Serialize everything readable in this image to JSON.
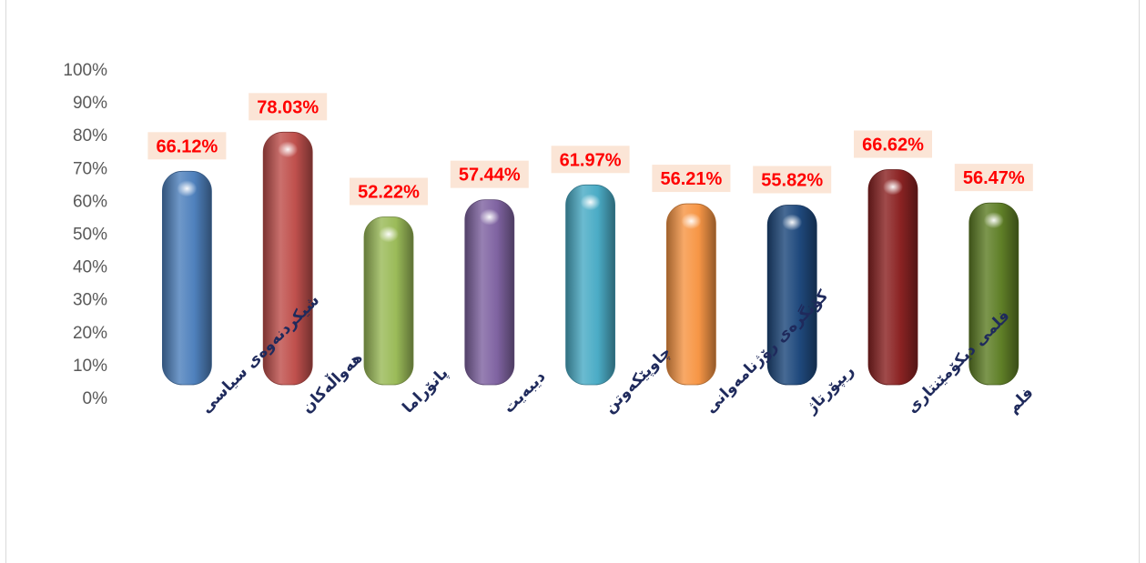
{
  "chart_data": {
    "type": "bar",
    "title": "",
    "xlabel": "",
    "ylabel": "",
    "ylim": [
      0,
      100
    ],
    "y_ticks": [
      "0%",
      "10%",
      "20%",
      "30%",
      "40%",
      "50%",
      "60%",
      "70%",
      "80%",
      "90%",
      "100%"
    ],
    "grid": false,
    "legend": "none",
    "categories": [
      "شیکردنەوەی سیاسی",
      "هەواڵەکان",
      "پانۆراما",
      "دیبەیت",
      "چاوپێکەوتن",
      "کۆنگرەی رۆژنامەوانی",
      "ریپۆرتاژ",
      "فلمی دیکۆمێنتاری",
      "فلم"
    ],
    "values": [
      66.12,
      78.03,
      52.22,
      57.44,
      61.97,
      56.21,
      55.82,
      66.62,
      56.47
    ],
    "data_labels": [
      "66.12%",
      "78.03%",
      "52.22%",
      "57.44%",
      "61.97%",
      "56.21%",
      "55.82%",
      "66.62%",
      "56.47%"
    ],
    "colors": [
      "#4f81bd",
      "#c0504d",
      "#9bbb59",
      "#8064a2",
      "#4bacc6",
      "#f79646",
      "#1f497d",
      "#8b2323",
      "#5f7f27"
    ],
    "label_box_color": "#fbe5d6",
    "label_text_color": "#ff0000"
  }
}
